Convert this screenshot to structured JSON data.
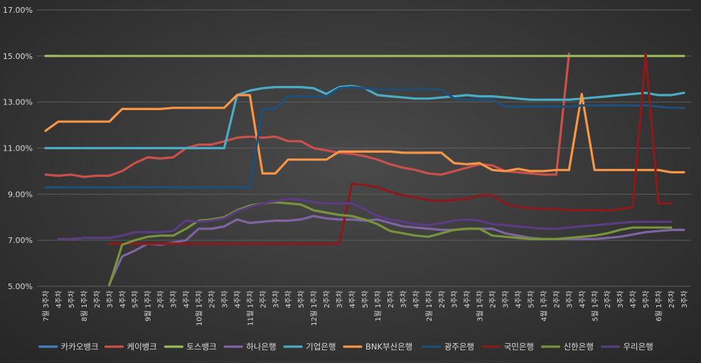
{
  "chart_data": {
    "type": "line",
    "title": "",
    "xlabel": "",
    "ylabel": "",
    "ylim": [
      5,
      17
    ],
    "yticks": [
      "5.00%",
      "7.00%",
      "9.00%",
      "11.00%",
      "13.00%",
      "15.00%",
      "17.00%"
    ],
    "grid": "horizontal",
    "legend": "bottom",
    "x": [
      "7월 3주차",
      "4주차",
      "5주차",
      "8월 1주차",
      "2주차",
      "3주차",
      "4주차",
      "5주차",
      "9월 1주차",
      "2주차",
      "3주차",
      "4주차",
      "10월 1주차",
      "2주차",
      "3주차",
      "4주차",
      "11월 1주차",
      "2주차",
      "3주차",
      "4주차",
      "5주차",
      "12월 1주차",
      "2주차",
      "3주차",
      "4주차",
      "5주차",
      "1월 1주차",
      "2주차",
      "3주차",
      "4주차",
      "2월 1주차",
      "2주차",
      "3주차",
      "4주차",
      "3월 1주차",
      "2주차",
      "3주차",
      "4주차",
      "5주차",
      "4월 1주차",
      "2주차",
      "3주차",
      "4주차",
      "5월 1주차",
      "2주차",
      "3주차",
      "4주차",
      "5주차",
      "6월 1주차",
      "2주차",
      "3주차"
    ],
    "series": [
      {
        "name": "카카오뱅크",
        "color": "#4a7fbf",
        "values": [
          15,
          15,
          null,
          null,
          null,
          null,
          null,
          null,
          null,
          null,
          null,
          null,
          null,
          null,
          null,
          null,
          null,
          null,
          null,
          null,
          null,
          null,
          null,
          null,
          null,
          null,
          null,
          null,
          null,
          null,
          null,
          null,
          null,
          null,
          null,
          null,
          null,
          null,
          null,
          null,
          null,
          null,
          null,
          null,
          null,
          null,
          null,
          null,
          null,
          null,
          null
        ]
      },
      {
        "name": "케이뱅크",
        "color": "#c9504b",
        "values": [
          9.85,
          9.8,
          9.85,
          9.75,
          9.8,
          9.8,
          10.0,
          10.35,
          10.6,
          10.55,
          10.6,
          11.0,
          11.15,
          11.15,
          11.3,
          11.45,
          11.5,
          11.45,
          11.5,
          11.3,
          11.3,
          11.0,
          10.9,
          10.8,
          10.75,
          10.65,
          10.5,
          10.3,
          10.15,
          10.05,
          9.9,
          9.85,
          10.0,
          10.15,
          10.3,
          10.25,
          10.0,
          9.95,
          9.9,
          9.85,
          9.85,
          15.1,
          null,
          null,
          null,
          null,
          null,
          null,
          null,
          null,
          null
        ]
      },
      {
        "name": "토스뱅크",
        "color": "#9bbb59",
        "values": [
          15,
          15,
          15,
          15,
          15,
          15,
          15,
          15,
          15,
          15,
          15,
          15,
          15,
          15,
          15,
          15,
          15,
          15,
          15,
          15,
          15,
          15,
          15,
          15,
          15,
          15,
          15,
          15,
          15,
          15,
          15,
          15,
          15,
          15,
          15,
          15,
          15,
          15,
          15,
          15,
          15,
          15,
          15,
          15,
          15,
          15,
          15,
          15,
          15,
          15,
          15
        ]
      },
      {
        "name": "하나은행",
        "color": "#8064a2",
        "values": [
          null,
          null,
          null,
          null,
          null,
          5.1,
          6.3,
          6.55,
          6.85,
          6.8,
          6.9,
          7.0,
          7.5,
          7.5,
          7.6,
          7.9,
          7.75,
          7.8,
          7.85,
          7.85,
          7.9,
          8.05,
          7.95,
          7.9,
          7.9,
          7.85,
          7.9,
          7.75,
          7.6,
          7.55,
          7.5,
          7.45,
          7.45,
          7.5,
          7.5,
          7.5,
          7.3,
          7.2,
          7.1,
          7.05,
          7.05,
          7.05,
          7.05,
          7.05,
          7.1,
          7.15,
          7.25,
          7.35,
          7.4,
          7.45,
          7.45
        ]
      },
      {
        "name": "기업은행",
        "color": "#4bacc6",
        "values": [
          11.0,
          11.0,
          11.0,
          11.0,
          11.0,
          11.0,
          11.0,
          11.0,
          11.0,
          11.0,
          11.0,
          11.0,
          11.0,
          11.0,
          11.0,
          13.3,
          13.5,
          13.6,
          13.65,
          13.65,
          13.65,
          13.6,
          13.35,
          13.65,
          13.7,
          13.6,
          13.3,
          13.25,
          13.2,
          13.15,
          13.15,
          13.2,
          13.25,
          13.3,
          13.25,
          13.25,
          13.2,
          13.15,
          13.1,
          13.1,
          13.1,
          13.1,
          13.15,
          13.2,
          13.25,
          13.3,
          13.35,
          13.4,
          13.3,
          13.3,
          13.4
        ]
      },
      {
        "name": "BNK부산은행",
        "color": "#f79646",
        "values": [
          11.75,
          12.15,
          12.15,
          12.15,
          12.15,
          12.15,
          12.7,
          12.7,
          12.7,
          12.7,
          12.75,
          12.75,
          12.75,
          12.75,
          12.75,
          13.3,
          13.3,
          9.9,
          9.9,
          10.5,
          10.5,
          10.5,
          10.5,
          10.85,
          10.85,
          10.85,
          10.85,
          10.85,
          10.8,
          10.8,
          10.8,
          10.8,
          10.35,
          10.3,
          10.35,
          10.05,
          10.0,
          10.1,
          10.0,
          10.0,
          10.05,
          10.05,
          13.35,
          10.05,
          10.05,
          10.05,
          10.05,
          10.05,
          10.05,
          9.95,
          9.95
        ]
      },
      {
        "name": "광주은행",
        "color": "#1f4e79",
        "values": [
          9.3,
          9.3,
          9.3,
          9.3,
          9.3,
          9.3,
          9.3,
          9.3,
          9.3,
          9.3,
          9.3,
          9.3,
          9.3,
          9.3,
          9.3,
          9.3,
          9.3,
          12.7,
          12.7,
          13.25,
          13.25,
          13.25,
          13.25,
          13.6,
          13.65,
          13.6,
          13.55,
          13.55,
          13.55,
          13.55,
          13.55,
          13.55,
          13.15,
          13.1,
          13.1,
          13.1,
          12.8,
          12.8,
          12.8,
          12.8,
          12.8,
          12.8,
          12.85,
          12.85,
          12.85,
          12.85,
          12.85,
          12.85,
          12.8,
          12.75,
          12.75
        ]
      },
      {
        "name": "국민은행",
        "color": "#8b1a1a",
        "values": [
          null,
          null,
          null,
          null,
          null,
          6.85,
          6.85,
          6.85,
          6.85,
          6.85,
          6.85,
          6.85,
          6.85,
          6.85,
          6.85,
          6.85,
          6.85,
          6.85,
          6.85,
          6.85,
          6.85,
          6.85,
          6.85,
          6.85,
          9.45,
          9.4,
          9.3,
          9.1,
          8.95,
          8.85,
          8.75,
          8.7,
          8.75,
          8.8,
          8.95,
          8.95,
          8.6,
          8.45,
          8.4,
          8.35,
          8.35,
          8.3,
          8.3,
          8.3,
          8.3,
          8.35,
          8.45,
          15.1,
          8.6,
          8.6,
          null
        ]
      },
      {
        "name": "신한은행",
        "color": "#77933c",
        "values": [
          null,
          null,
          null,
          null,
          null,
          5.05,
          6.8,
          7.0,
          7.15,
          7.2,
          7.2,
          7.5,
          7.85,
          7.9,
          8.0,
          8.3,
          8.5,
          8.6,
          8.65,
          8.6,
          8.55,
          8.3,
          8.2,
          8.1,
          8.05,
          7.9,
          7.7,
          7.4,
          7.3,
          7.2,
          7.15,
          7.3,
          7.45,
          7.5,
          7.5,
          7.2,
          7.15,
          7.1,
          7.05,
          7.05,
          7.05,
          7.1,
          7.15,
          7.2,
          7.3,
          7.45,
          7.55,
          7.55,
          7.55,
          7.55,
          null
        ]
      },
      {
        "name": "우리은행",
        "color": "#5b3c82",
        "values": [
          null,
          7.05,
          7.05,
          7.1,
          7.1,
          7.1,
          7.2,
          7.35,
          7.35,
          7.35,
          7.4,
          7.85,
          7.8,
          7.85,
          7.95,
          8.25,
          8.45,
          8.6,
          8.7,
          8.8,
          8.75,
          8.65,
          8.6,
          8.6,
          8.6,
          8.35,
          8.05,
          7.9,
          7.8,
          7.7,
          7.65,
          7.75,
          7.85,
          7.9,
          7.85,
          7.7,
          7.65,
          7.6,
          7.55,
          7.5,
          7.5,
          7.55,
          7.6,
          7.65,
          7.7,
          7.75,
          7.8,
          7.8,
          7.8,
          7.8,
          null
        ]
      }
    ]
  }
}
